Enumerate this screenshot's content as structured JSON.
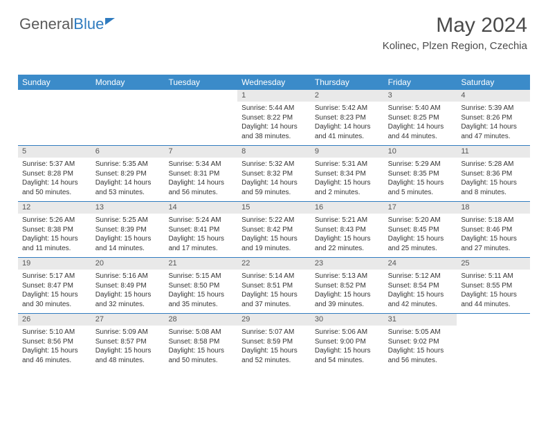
{
  "logo": {
    "part1": "General",
    "part2": "Blue"
  },
  "title": "May 2024",
  "location": "Kolinec, Plzen Region, Czechia",
  "colors": {
    "header_bg": "#3b8bc9",
    "header_text": "#ffffff",
    "daynum_bg": "#e9e9e9",
    "week_border": "#2f7bbf",
    "text": "#333333"
  },
  "weekdays": [
    "Sunday",
    "Monday",
    "Tuesday",
    "Wednesday",
    "Thursday",
    "Friday",
    "Saturday"
  ],
  "weeks": [
    [
      {
        "n": "",
        "sunrise": "",
        "sunset": "",
        "daylight": ""
      },
      {
        "n": "",
        "sunrise": "",
        "sunset": "",
        "daylight": ""
      },
      {
        "n": "",
        "sunrise": "",
        "sunset": "",
        "daylight": ""
      },
      {
        "n": "1",
        "sunrise": "5:44 AM",
        "sunset": "8:22 PM",
        "daylight": "14 hours and 38 minutes."
      },
      {
        "n": "2",
        "sunrise": "5:42 AM",
        "sunset": "8:23 PM",
        "daylight": "14 hours and 41 minutes."
      },
      {
        "n": "3",
        "sunrise": "5:40 AM",
        "sunset": "8:25 PM",
        "daylight": "14 hours and 44 minutes."
      },
      {
        "n": "4",
        "sunrise": "5:39 AM",
        "sunset": "8:26 PM",
        "daylight": "14 hours and 47 minutes."
      }
    ],
    [
      {
        "n": "5",
        "sunrise": "5:37 AM",
        "sunset": "8:28 PM",
        "daylight": "14 hours and 50 minutes."
      },
      {
        "n": "6",
        "sunrise": "5:35 AM",
        "sunset": "8:29 PM",
        "daylight": "14 hours and 53 minutes."
      },
      {
        "n": "7",
        "sunrise": "5:34 AM",
        "sunset": "8:31 PM",
        "daylight": "14 hours and 56 minutes."
      },
      {
        "n": "8",
        "sunrise": "5:32 AM",
        "sunset": "8:32 PM",
        "daylight": "14 hours and 59 minutes."
      },
      {
        "n": "9",
        "sunrise": "5:31 AM",
        "sunset": "8:34 PM",
        "daylight": "15 hours and 2 minutes."
      },
      {
        "n": "10",
        "sunrise": "5:29 AM",
        "sunset": "8:35 PM",
        "daylight": "15 hours and 5 minutes."
      },
      {
        "n": "11",
        "sunrise": "5:28 AM",
        "sunset": "8:36 PM",
        "daylight": "15 hours and 8 minutes."
      }
    ],
    [
      {
        "n": "12",
        "sunrise": "5:26 AM",
        "sunset": "8:38 PM",
        "daylight": "15 hours and 11 minutes."
      },
      {
        "n": "13",
        "sunrise": "5:25 AM",
        "sunset": "8:39 PM",
        "daylight": "15 hours and 14 minutes."
      },
      {
        "n": "14",
        "sunrise": "5:24 AM",
        "sunset": "8:41 PM",
        "daylight": "15 hours and 17 minutes."
      },
      {
        "n": "15",
        "sunrise": "5:22 AM",
        "sunset": "8:42 PM",
        "daylight": "15 hours and 19 minutes."
      },
      {
        "n": "16",
        "sunrise": "5:21 AM",
        "sunset": "8:43 PM",
        "daylight": "15 hours and 22 minutes."
      },
      {
        "n": "17",
        "sunrise": "5:20 AM",
        "sunset": "8:45 PM",
        "daylight": "15 hours and 25 minutes."
      },
      {
        "n": "18",
        "sunrise": "5:18 AM",
        "sunset": "8:46 PM",
        "daylight": "15 hours and 27 minutes."
      }
    ],
    [
      {
        "n": "19",
        "sunrise": "5:17 AM",
        "sunset": "8:47 PM",
        "daylight": "15 hours and 30 minutes."
      },
      {
        "n": "20",
        "sunrise": "5:16 AM",
        "sunset": "8:49 PM",
        "daylight": "15 hours and 32 minutes."
      },
      {
        "n": "21",
        "sunrise": "5:15 AM",
        "sunset": "8:50 PM",
        "daylight": "15 hours and 35 minutes."
      },
      {
        "n": "22",
        "sunrise": "5:14 AM",
        "sunset": "8:51 PM",
        "daylight": "15 hours and 37 minutes."
      },
      {
        "n": "23",
        "sunrise": "5:13 AM",
        "sunset": "8:52 PM",
        "daylight": "15 hours and 39 minutes."
      },
      {
        "n": "24",
        "sunrise": "5:12 AM",
        "sunset": "8:54 PM",
        "daylight": "15 hours and 42 minutes."
      },
      {
        "n": "25",
        "sunrise": "5:11 AM",
        "sunset": "8:55 PM",
        "daylight": "15 hours and 44 minutes."
      }
    ],
    [
      {
        "n": "26",
        "sunrise": "5:10 AM",
        "sunset": "8:56 PM",
        "daylight": "15 hours and 46 minutes."
      },
      {
        "n": "27",
        "sunrise": "5:09 AM",
        "sunset": "8:57 PM",
        "daylight": "15 hours and 48 minutes."
      },
      {
        "n": "28",
        "sunrise": "5:08 AM",
        "sunset": "8:58 PM",
        "daylight": "15 hours and 50 minutes."
      },
      {
        "n": "29",
        "sunrise": "5:07 AM",
        "sunset": "8:59 PM",
        "daylight": "15 hours and 52 minutes."
      },
      {
        "n": "30",
        "sunrise": "5:06 AM",
        "sunset": "9:00 PM",
        "daylight": "15 hours and 54 minutes."
      },
      {
        "n": "31",
        "sunrise": "5:05 AM",
        "sunset": "9:02 PM",
        "daylight": "15 hours and 56 minutes."
      },
      {
        "n": "",
        "sunrise": "",
        "sunset": "",
        "daylight": ""
      }
    ]
  ]
}
